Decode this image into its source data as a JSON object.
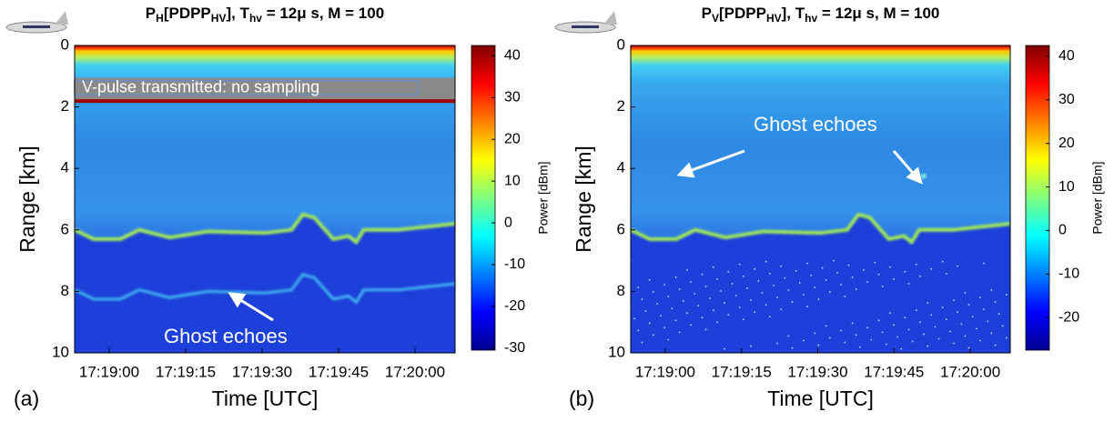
{
  "chart_data": [
    {
      "type": "heatmap",
      "panel_label": "(a)",
      "title": [
        "P",
        "H",
        "[PDPP",
        "HV",
        "], T",
        "hv",
        " = 12μ s, M = 100"
      ],
      "xlabel": "Time [UTC]",
      "ylabel": "Range [km]",
      "xticks": [
        "17:19:00",
        "17:19:15",
        "17:19:30",
        "17:19:45",
        "17:20:00"
      ],
      "ylim": [
        0,
        10
      ],
      "yticks": [
        0,
        2,
        4,
        6,
        8,
        10
      ],
      "y_reversed": true,
      "colorbar_label": "Power [dBm]",
      "clim": [
        -30.5,
        42.5
      ],
      "cticks": [
        40,
        30,
        20,
        10,
        0,
        -10,
        -20,
        -30
      ],
      "annotations": [
        "V-pulse transmitted: no sampling",
        "Ghost echoes"
      ]
    },
    {
      "type": "heatmap",
      "panel_label": "(b)",
      "title": [
        "P",
        "V",
        "[PDPP",
        "HV",
        "], T",
        "hv",
        " = 12μ s, M = 100"
      ],
      "xlabel": "Time [UTC]",
      "ylabel": "Range [km]",
      "xticks": [
        "17:19:00",
        "17:19:15",
        "17:19:30",
        "17:19:45",
        "17:20:00"
      ],
      "ylim": [
        0,
        10
      ],
      "yticks": [
        0,
        2,
        4,
        6,
        8,
        10
      ],
      "y_reversed": true,
      "colorbar_label": "Power [dBm]",
      "clim": [
        -27.5,
        42.5
      ],
      "cticks": [
        40,
        30,
        20,
        10,
        0,
        -10,
        -20
      ],
      "annotations": [
        "Ghost echoes"
      ]
    }
  ]
}
